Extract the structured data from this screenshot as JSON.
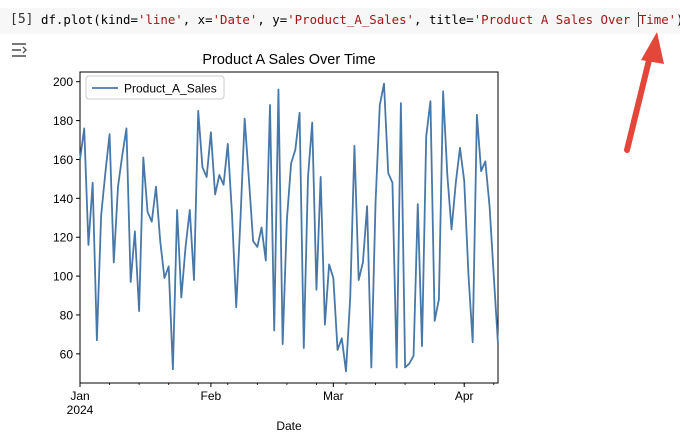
{
  "cell": {
    "execution_count": "[5]",
    "code": {
      "p1": "df.plot(kind=",
      "s1": "'line'",
      "p2": ", x=",
      "s2": "'Date'",
      "p3": ", y=",
      "s3": "'Product_A_Sales'",
      "p4": ", title=",
      "s4a": "'Product A Sales Over ",
      "s4b": "Time'",
      "p5": ");"
    },
    "output_icon": "output-toggle-icon"
  },
  "annotation": {
    "arrow_color": "#e2473a"
  },
  "chart_data": {
    "type": "line",
    "title": "Product A Sales Over Time",
    "xlabel": "Date",
    "ylabel": "",
    "legend": {
      "position": "top-left"
    },
    "line_color": "#4878a8",
    "grid": false,
    "x_range": [
      "2024-01-01",
      "2024-04-09"
    ],
    "ylim": [
      45,
      205
    ],
    "yticks": [
      60,
      80,
      100,
      120,
      140,
      160,
      180,
      200
    ],
    "xticks": [
      {
        "date": "2024-01-01",
        "label": "Jan",
        "sublabel": "2024"
      },
      {
        "date": "2024-02-01",
        "label": "Feb",
        "sublabel": ""
      },
      {
        "date": "2024-03-01",
        "label": "Mar",
        "sublabel": ""
      },
      {
        "date": "2024-04-01",
        "label": "Apr",
        "sublabel": ""
      }
    ],
    "series": [
      {
        "name": "Product_A_Sales",
        "start": "2024-01-01",
        "freq": "D",
        "values": [
          160,
          176,
          116,
          148,
          67,
          131,
          153,
          173,
          107,
          146,
          162,
          176,
          97,
          123,
          82,
          161,
          133,
          128,
          146,
          118,
          99,
          105,
          52,
          134,
          89,
          115,
          134,
          98,
          185,
          156,
          151,
          174,
          142,
          152,
          147,
          168,
          132,
          84,
          129,
          181,
          150,
          118,
          115,
          125,
          108,
          188,
          72,
          196,
          65,
          129,
          158,
          165,
          184,
          63,
          151,
          179,
          93,
          151,
          75,
          106,
          99,
          62,
          68,
          51,
          89,
          167,
          98,
          107,
          136,
          53,
          138,
          188,
          199,
          153,
          148,
          53,
          189,
          53,
          55,
          59,
          137,
          64,
          172,
          190,
          77,
          88,
          195,
          152,
          124,
          148,
          166,
          149,
          101,
          66,
          183,
          154,
          159,
          136,
          100,
          65
        ]
      }
    ]
  }
}
